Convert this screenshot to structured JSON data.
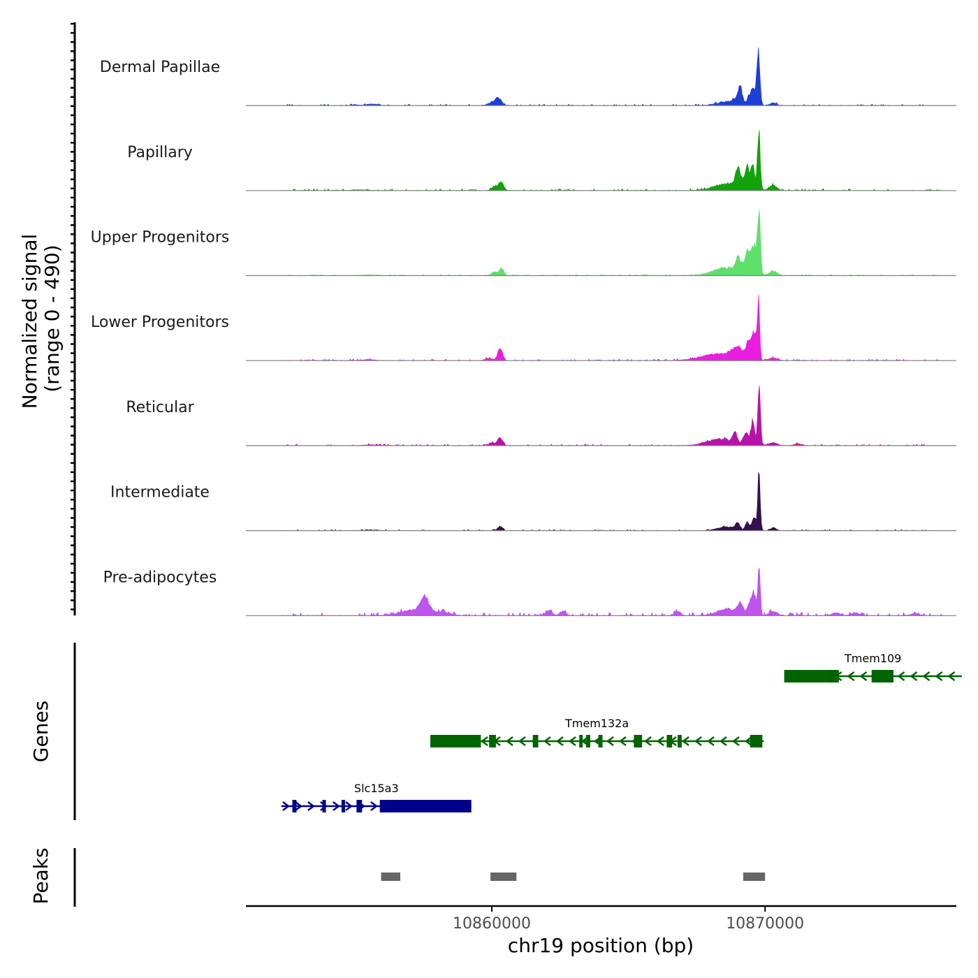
{
  "chart_data": {
    "type": "coverage",
    "region": "chr19:10851000-10877000",
    "x_range": [
      10851000,
      10877000
    ],
    "signal_axis": {
      "title_line1": "Normalized signal",
      "title_line2": "(range 0 - 490)",
      "range": [
        0,
        490
      ]
    },
    "genes_axis_title": "Genes",
    "peaks_axis_title": "Peaks",
    "xlabel": "chr19 position (bp)",
    "x_ticks": [
      {
        "value": 10860000,
        "label": "10860000"
      },
      {
        "value": 10870000,
        "label": "10870000"
      }
    ],
    "tracks": [
      {
        "name": "Dermal Papillae",
        "color": "#1d3fd6",
        "noise_seed": 11,
        "noise_level": 4,
        "noise_range": [
          10852300,
          10875800
        ],
        "bumps": [
          [
            10855000,
            150,
            5
          ],
          [
            10855600,
            300,
            10
          ],
          [
            10860000,
            200,
            20
          ],
          [
            10860250,
            150,
            50
          ],
          [
            10868600,
            500,
            25
          ],
          [
            10869100,
            100,
            90
          ],
          [
            10869400,
            80,
            60
          ],
          [
            10869550,
            90,
            120
          ],
          [
            10869750,
            80,
            380
          ],
          [
            10869000,
            200,
            40
          ],
          [
            10870300,
            150,
            20
          ]
        ]
      },
      {
        "name": "Papillary",
        "color": "#12a30a",
        "noise_seed": 23,
        "noise_level": 5,
        "noise_range": [
          10852300,
          10876500
        ],
        "bumps": [
          [
            10855200,
            400,
            5
          ],
          [
            10860100,
            150,
            30
          ],
          [
            10860350,
            120,
            60
          ],
          [
            10868500,
            600,
            40
          ],
          [
            10869000,
            100,
            100
          ],
          [
            10869350,
            100,
            110
          ],
          [
            10869550,
            90,
            150
          ],
          [
            10869770,
            70,
            410
          ],
          [
            10869200,
            400,
            60
          ],
          [
            10870300,
            200,
            35
          ]
        ]
      },
      {
        "name": "Upper Progenitors",
        "color": "#5fe06a",
        "noise_seed": 37,
        "noise_level": 3,
        "noise_range": [
          10852300,
          10876500
        ],
        "bumps": [
          [
            10855500,
            400,
            4
          ],
          [
            10860100,
            150,
            25
          ],
          [
            10860350,
            120,
            45
          ],
          [
            10868500,
            600,
            50
          ],
          [
            10869000,
            100,
            70
          ],
          [
            10869350,
            100,
            90
          ],
          [
            10869600,
            150,
            160
          ],
          [
            10869780,
            70,
            380
          ],
          [
            10869300,
            400,
            70
          ],
          [
            10870300,
            200,
            30
          ]
        ]
      },
      {
        "name": "Lower Progenitors",
        "color": "#ea1ee0",
        "noise_seed": 41,
        "noise_level": 4,
        "noise_range": [
          10852300,
          10876500
        ],
        "bumps": [
          [
            10855500,
            400,
            5
          ],
          [
            10860300,
            120,
            80
          ],
          [
            10859900,
            200,
            15
          ],
          [
            10868300,
            900,
            45
          ],
          [
            10869000,
            300,
            70
          ],
          [
            10869400,
            120,
            110
          ],
          [
            10869600,
            130,
            180
          ],
          [
            10869760,
            60,
            360
          ],
          [
            10870300,
            200,
            20
          ]
        ]
      },
      {
        "name": "Reticular",
        "color": "#b614a8",
        "noise_seed": 53,
        "noise_level": 4,
        "noise_range": [
          10852300,
          10876200
        ],
        "bumps": [
          [
            10855600,
            400,
            5
          ],
          [
            10860000,
            150,
            20
          ],
          [
            10860300,
            120,
            55
          ],
          [
            10868400,
            700,
            45
          ],
          [
            10868900,
            100,
            70
          ],
          [
            10869300,
            120,
            85
          ],
          [
            10869550,
            100,
            160
          ],
          [
            10869780,
            70,
            390
          ],
          [
            10870300,
            200,
            20
          ],
          [
            10871200,
            200,
            12
          ]
        ]
      },
      {
        "name": "Intermediate",
        "color": "#35104f",
        "noise_seed": 67,
        "noise_level": 3,
        "noise_range": [
          10852300,
          10876200
        ],
        "bumps": [
          [
            10855600,
            400,
            4
          ],
          [
            10860300,
            120,
            30
          ],
          [
            10868600,
            500,
            25
          ],
          [
            10869000,
            100,
            50
          ],
          [
            10869350,
            100,
            55
          ],
          [
            10869600,
            120,
            80
          ],
          [
            10869780,
            60,
            390
          ],
          [
            10870300,
            150,
            20
          ]
        ]
      },
      {
        "name": "Pre-adipocytes",
        "color": "#bf54ee",
        "noise_seed": 79,
        "noise_level": 9,
        "noise_range": [
          10852300,
          10876500
        ],
        "bumps": [
          [
            10857200,
            700,
            40
          ],
          [
            10857550,
            200,
            100
          ],
          [
            10858200,
            400,
            20
          ],
          [
            10862100,
            150,
            35
          ],
          [
            10862600,
            150,
            30
          ],
          [
            10866800,
            150,
            30
          ],
          [
            10868600,
            500,
            45
          ],
          [
            10869100,
            150,
            70
          ],
          [
            10869450,
            120,
            90
          ],
          [
            10869600,
            100,
            140
          ],
          [
            10869780,
            60,
            370
          ],
          [
            10870300,
            200,
            30
          ],
          [
            10872600,
            200,
            20
          ],
          [
            10873300,
            200,
            20
          ],
          [
            10875500,
            200,
            15
          ]
        ]
      }
    ],
    "genes": [
      {
        "name": "Tmem109",
        "color": "#006400",
        "strand": "-",
        "start": 10870700,
        "end": 10877200,
        "exons": [
          [
            10870700,
            10872200
          ],
          [
            10872200,
            10872700
          ],
          [
            10873900,
            10874700
          ]
        ]
      },
      {
        "name": "Tmem132a",
        "color": "#006400",
        "strand": "-",
        "start": 10857750,
        "end": 10869950,
        "exons": [
          [
            10857750,
            10859600
          ],
          [
            10859900,
            10860150
          ],
          [
            10861500,
            10861700
          ],
          [
            10863200,
            10863300
          ],
          [
            10863450,
            10863600
          ],
          [
            10863900,
            10864050
          ],
          [
            10865200,
            10865500
          ],
          [
            10866400,
            10866600
          ],
          [
            10866800,
            10866950
          ],
          [
            10869450,
            10869900
          ]
        ]
      },
      {
        "name": "Slc15a3",
        "color": "#00008b",
        "strand": "+",
        "start": 10852300,
        "end": 10859250,
        "exons": [
          [
            10852700,
            10852850
          ],
          [
            10853800,
            10853900
          ],
          [
            10854500,
            10854600
          ],
          [
            10855050,
            10855250
          ],
          [
            10855900,
            10859250
          ]
        ]
      }
    ],
    "peaks": [
      [
        10855950,
        10856650
      ],
      [
        10859950,
        10860900
      ],
      [
        10869200,
        10870000
      ]
    ]
  }
}
